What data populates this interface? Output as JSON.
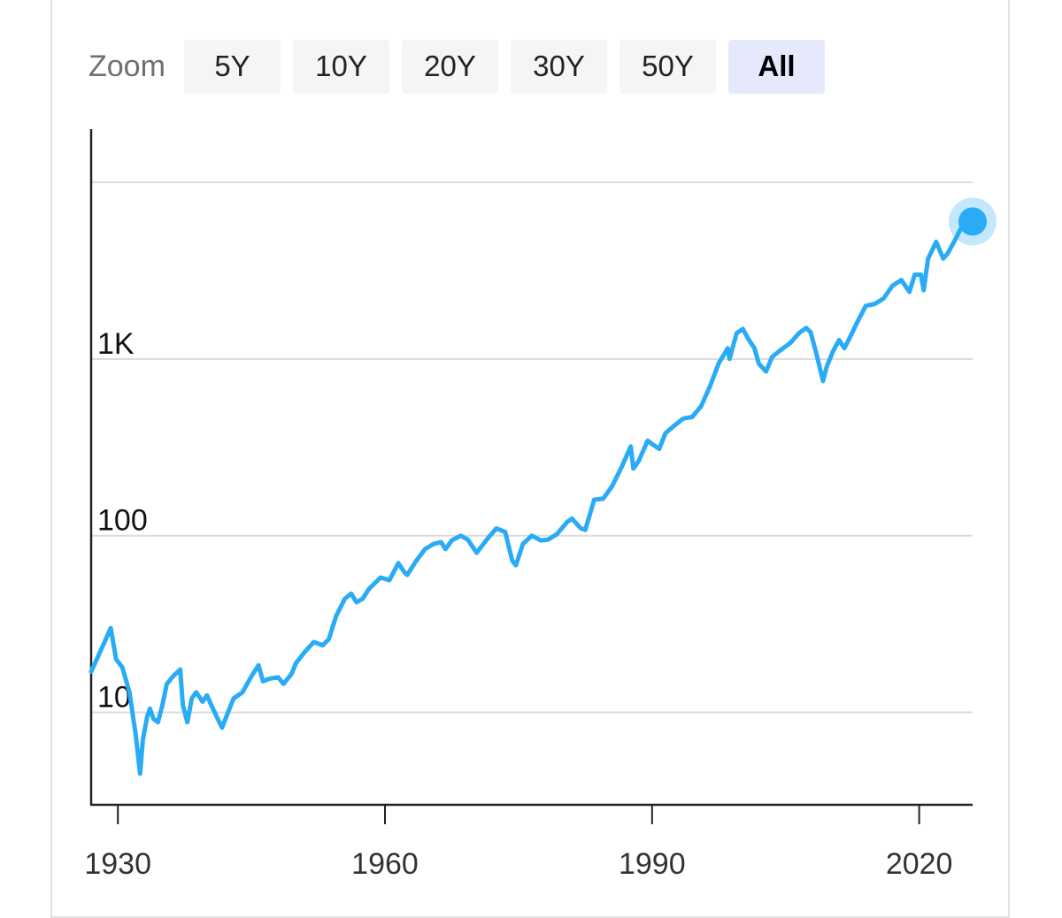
{
  "zoom": {
    "label": "Zoom",
    "buttons": [
      {
        "label": "5Y",
        "active": false
      },
      {
        "label": "10Y",
        "active": false
      },
      {
        "label": "20Y",
        "active": false
      },
      {
        "label": "30Y",
        "active": false
      },
      {
        "label": "50Y",
        "active": false
      },
      {
        "label": "All",
        "active": true
      }
    ]
  },
  "chart_data": {
    "type": "line",
    "title": "",
    "xlabel": "",
    "ylabel": "",
    "y_scale": "log",
    "ylim": [
      3,
      20000
    ],
    "xlim": [
      1927,
      2026
    ],
    "grid": "horizontal",
    "y_ticks": [
      {
        "value": 10,
        "label": "10"
      },
      {
        "value": 100,
        "label": "100"
      },
      {
        "value": 1000,
        "label": "1K"
      },
      {
        "value": 10000,
        "label": ""
      }
    ],
    "x_ticks": [
      {
        "value": 1930,
        "label": "1930"
      },
      {
        "value": 1960,
        "label": "1960"
      },
      {
        "value": 1990,
        "label": "1990"
      },
      {
        "value": 2020,
        "label": "2020"
      }
    ],
    "line_color": "#29abf5",
    "series": [
      {
        "x": [
          1927.0,
          1928.0,
          1929.2,
          1929.8,
          1930.5,
          1931.3,
          1932.0,
          1932.5,
          1932.8,
          1933.3,
          1933.6,
          1934.0,
          1934.5,
          1935.0,
          1935.5,
          1936.2,
          1937.0,
          1937.3,
          1937.8,
          1938.3,
          1938.8,
          1939.5,
          1940.0,
          1940.5,
          1941.0,
          1941.7,
          1942.3,
          1943.0,
          1944.0,
          1945.0,
          1945.8,
          1946.3,
          1947.0,
          1948.0,
          1948.6,
          1949.5,
          1950.0,
          1951.0,
          1952.0,
          1953.0,
          1953.7,
          1954.5,
          1955.5,
          1956.2,
          1956.8,
          1957.5,
          1958.2,
          1959.5,
          1960.5,
          1961.5,
          1962.2,
          1962.5,
          1963.5,
          1964.5,
          1965.5,
          1966.3,
          1966.8,
          1967.5,
          1968.5,
          1969.3,
          1970.3,
          1970.7,
          1971.5,
          1972.5,
          1973.5,
          1974.3,
          1974.7,
          1975.5,
          1976.5,
          1977.5,
          1978.3,
          1979.3,
          1980.5,
          1981.0,
          1982.0,
          1982.5,
          1983.5,
          1984.5,
          1985.5,
          1986.5,
          1987.6,
          1987.9,
          1988.5,
          1989.5,
          1990.0,
          1990.8,
          1991.5,
          1992.5,
          1993.5,
          1994.5,
          1995.5,
          1996.5,
          1997.5,
          1998.5,
          1998.7,
          1999.5,
          2000.2,
          2000.8,
          2001.5,
          2002.0,
          2002.8,
          2003.5,
          2004.5,
          2005.5,
          2006.5,
          2007.3,
          2007.8,
          2008.5,
          2009.2,
          2009.6,
          2010.3,
          2011.0,
          2011.6,
          2012.3,
          2013.0,
          2014.0,
          2015.0,
          2016.0,
          2017.0,
          2018.0,
          2018.9,
          2019.5,
          2020.2,
          2020.5,
          2021.0,
          2021.9,
          2022.7,
          2023.2,
          2024.0,
          2024.7,
          2025.3,
          2026.0
        ],
        "y": [
          17,
          22,
          30,
          20,
          18,
          13,
          7.5,
          4.5,
          7,
          9.5,
          10.5,
          9.2,
          8.8,
          11,
          14.5,
          16,
          17.5,
          11,
          8.8,
          12,
          13,
          11.5,
          12.5,
          11,
          9.7,
          8.2,
          9.8,
          12,
          13,
          16,
          18.5,
          15,
          15.5,
          15.8,
          14.5,
          16.5,
          19,
          22,
          25,
          24,
          26,
          35,
          44,
          47,
          42,
          44,
          50,
          58,
          56,
          70,
          62,
          60,
          72,
          84,
          90,
          92,
          84,
          94,
          100,
          95,
          80,
          85,
          96,
          110,
          105,
          72,
          68,
          90,
          100,
          94,
          95,
          102,
          120,
          125,
          110,
          108,
          160,
          162,
          190,
          240,
          320,
          240,
          265,
          345,
          330,
          310,
          380,
          420,
          460,
          470,
          540,
          700,
          950,
          1150,
          1000,
          1400,
          1480,
          1300,
          1150,
          940,
          850,
          1030,
          1130,
          1230,
          1400,
          1500,
          1420,
          1050,
          750,
          900,
          1100,
          1280,
          1150,
          1350,
          1600,
          2000,
          2050,
          2200,
          2600,
          2800,
          2400,
          3000,
          3000,
          2450,
          3700,
          4600,
          3700,
          3950,
          4700,
          5500,
          5400,
          6000
        ]
      }
    ]
  }
}
